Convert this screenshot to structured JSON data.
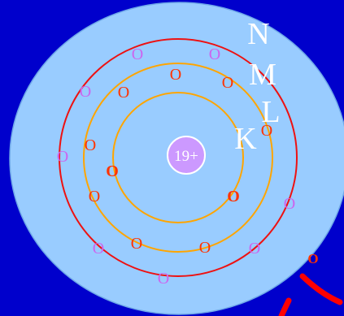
{
  "nucleus": {
    "label": "19+",
    "fill": "#CC99FF"
  },
  "shells": [
    {
      "label": "K",
      "color": "#FFA500",
      "electron_count": 2,
      "electron_color": "#FF3300"
    },
    {
      "label": "L",
      "color": "#FFA500",
      "electron_count": 8,
      "electron_color": "#FF3300"
    },
    {
      "label": "M",
      "color": "#EE1111",
      "electron_count": 8,
      "electron_color": "#CC66EE"
    },
    {
      "label": "N",
      "color": "#99CCFF",
      "electron_count": 1,
      "electron_color": "#FF3300"
    }
  ],
  "electron_glyph": "O",
  "colors": {
    "background": "#0000CC",
    "atom_disc": "#99CCFF",
    "label_text": "#FFFFFF",
    "swoosh": "#FF0000"
  }
}
